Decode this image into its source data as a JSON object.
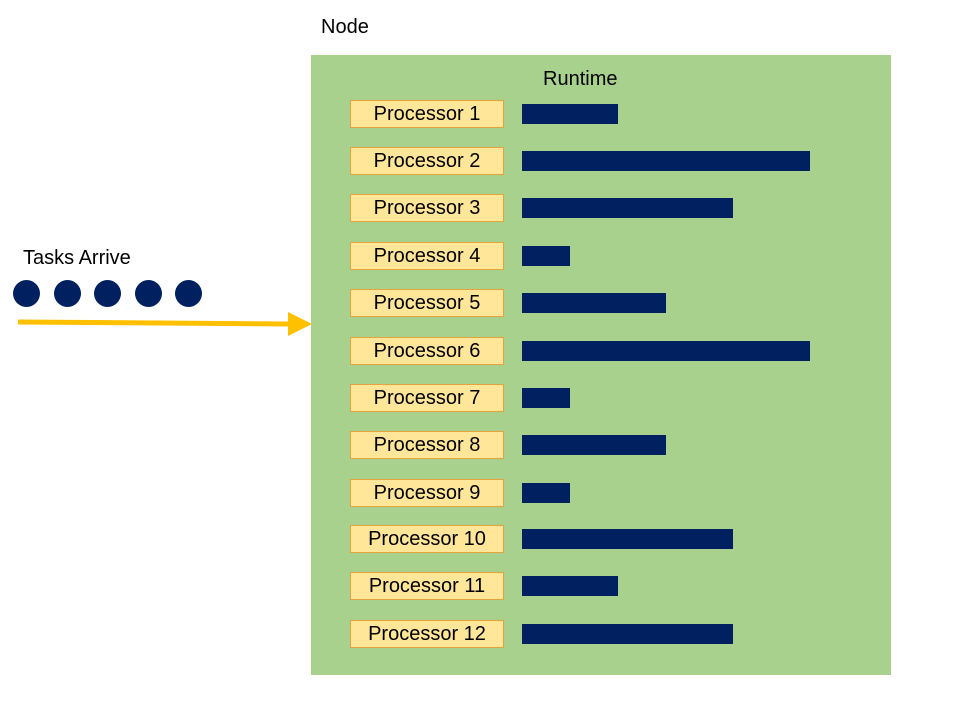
{
  "node": {
    "title": "Node",
    "runtime_label": "Runtime"
  },
  "tasks": {
    "label": "Tasks Arrive",
    "dot_count": 5
  },
  "processors": [
    {
      "label": "Processor 1",
      "runtime": 2
    },
    {
      "label": "Processor 2",
      "runtime": 6
    },
    {
      "label": "Processor 3",
      "runtime": 4.4
    },
    {
      "label": "Processor 4",
      "runtime": 1
    },
    {
      "label": "Processor 5",
      "runtime": 3
    },
    {
      "label": "Processor 6",
      "runtime": 6
    },
    {
      "label": "Processor 7",
      "runtime": 1
    },
    {
      "label": "Processor 8",
      "runtime": 3
    },
    {
      "label": "Processor 9",
      "runtime": 1
    },
    {
      "label": "Processor 10",
      "runtime": 4.4
    },
    {
      "label": "Processor 11",
      "runtime": 2
    },
    {
      "label": "Processor 12",
      "runtime": 4.4
    }
  ],
  "colors": {
    "node_background": "#a9d18e",
    "processor_fill": "#ffe699",
    "processor_border": "#e6a23c",
    "bar": "#002060",
    "task_dot": "#002060",
    "arrow": "#ffc000"
  }
}
